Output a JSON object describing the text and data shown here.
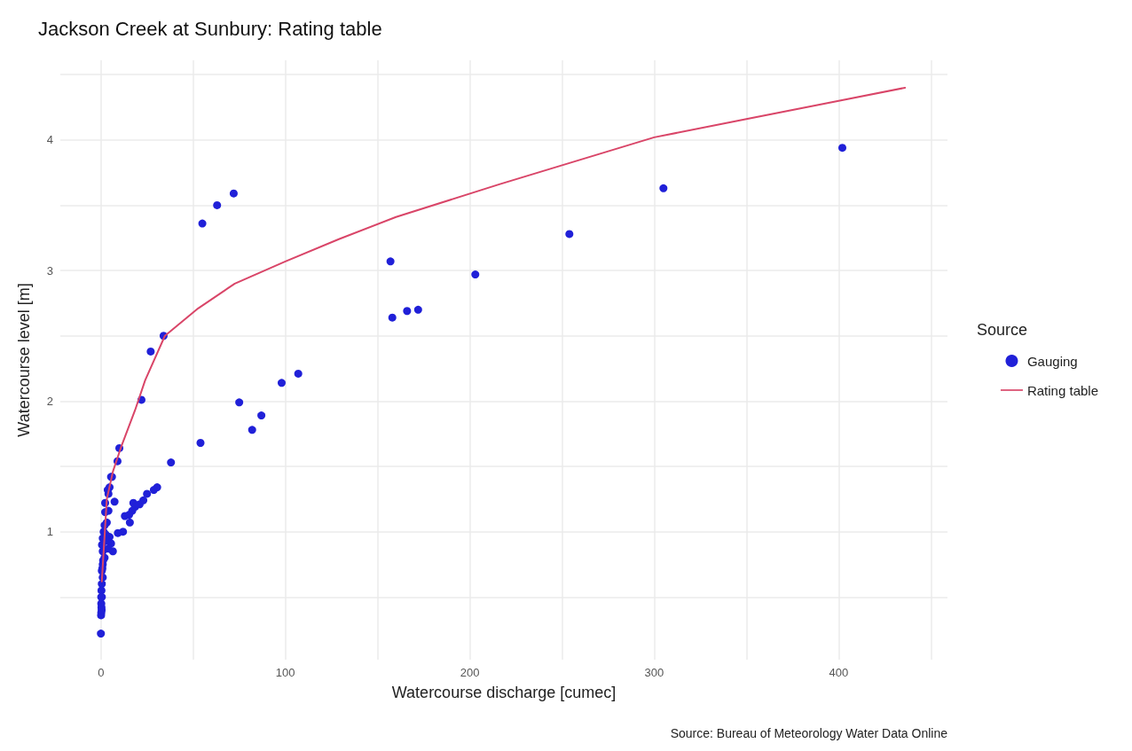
{
  "chart_data": {
    "type": "scatter",
    "title": "Jackson Creek at Sunbury: Rating table",
    "xlabel": "Watercourse discharge [cumec]",
    "ylabel": "Watercourse level [m]",
    "legend_title": "Source",
    "legend": "right",
    "grid": true,
    "marker": "circle",
    "annotations": [
      "Source: Bureau of Meteorology Water Data Online"
    ],
    "xlim": [
      -22,
      459
    ],
    "ylim": [
      0.02,
      4.61
    ],
    "xticks": [
      0,
      {
        "value": 50,
        "label": null
      },
      100,
      {
        "value": 150,
        "label": null
      },
      200,
      {
        "value": 250,
        "label": null
      },
      300,
      {
        "value": 350,
        "label": null
      },
      400,
      {
        "value": 450,
        "label": null
      }
    ],
    "yticks": [
      {
        "value": 0.5,
        "label": null
      },
      1,
      {
        "value": 1.5,
        "label": null
      },
      2,
      {
        "value": 2.5,
        "label": null
      },
      3,
      {
        "value": 3.5,
        "label": null
      },
      4,
      {
        "value": 4.5,
        "label": null
      }
    ],
    "series": [
      {
        "name": "Gauging",
        "color": "#2020d8",
        "x": [
          402,
          305,
          254,
          203,
          157,
          158,
          166,
          172,
          107,
          98,
          75,
          87,
          82,
          54,
          38,
          55,
          63,
          72,
          34,
          27,
          22,
          10,
          9,
          6,
          30.5,
          28.7,
          25,
          23,
          21,
          17.6,
          18.5,
          17,
          15.3,
          13,
          15.7,
          12,
          9.2,
          7.4,
          5.5,
          4.7,
          3.7,
          4.1,
          2.3,
          4.1,
          2.3,
          3.2,
          6.5,
          5.5,
          4.7,
          2,
          1.5,
          1,
          3,
          4,
          1,
          2,
          1,
          0.5,
          1,
          0.5,
          0.3,
          0.5,
          0.2,
          0.3,
          0.2,
          0.1,
          0.4,
          1.2,
          0.8,
          2.5,
          0.2,
          0.6,
          0
        ],
        "values": [
          3.94,
          3.63,
          3.28,
          2.97,
          3.07,
          2.64,
          2.69,
          2.7,
          2.21,
          2.14,
          1.99,
          1.89,
          1.78,
          1.68,
          1.53,
          3.36,
          3.5,
          3.59,
          2.5,
          2.38,
          2.01,
          1.64,
          1.54,
          1.42,
          1.34,
          1.32,
          1.29,
          1.24,
          1.21,
          1.22,
          1.19,
          1.16,
          1.13,
          1.12,
          1.07,
          1.0,
          0.99,
          1.23,
          1.42,
          1.34,
          1.32,
          1.29,
          1.22,
          1.16,
          1.15,
          1.07,
          0.85,
          0.91,
          0.96,
          1.05,
          1.0,
          0.95,
          0.93,
          0.87,
          0.85,
          0.8,
          0.75,
          0.7,
          0.65,
          0.6,
          0.55,
          0.5,
          0.45,
          0.42,
          0.38,
          0.36,
          0.4,
          0.78,
          0.72,
          0.98,
          0.5,
          0.9,
          0.22
        ]
      },
      {
        "name": "Rating table",
        "type": "line",
        "color": "#d94568",
        "marker": "none",
        "x": [
          0.5,
          3.2,
          6.5,
          11,
          18.5,
          24,
          34.7,
          52.7,
          72.6,
          100,
          129,
          160,
          216,
          300,
          350,
          400,
          436
        ],
        "values": [
          0.62,
          1.25,
          1.46,
          1.65,
          1.93,
          2.16,
          2.5,
          2.71,
          2.9,
          3.07,
          3.24,
          3.41,
          3.66,
          4.02,
          4.16,
          4.3,
          4.4
        ]
      }
    ]
  }
}
